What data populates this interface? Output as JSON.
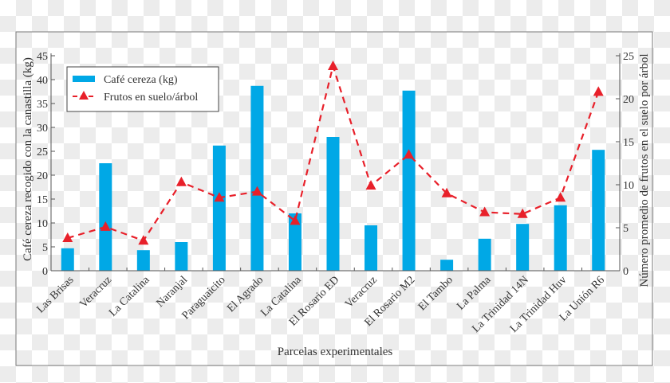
{
  "chart_data": {
    "type": "bar",
    "title": "",
    "xlabel": "Parcelas experimentales",
    "ylabel": "Café cereza recogido con la canastilla (kg)",
    "y2label": "Número promedio de frutos en el suelo por árbol",
    "ylim": [
      0,
      45
    ],
    "y2lim": [
      0,
      25
    ],
    "yticks": [
      0,
      5,
      10,
      15,
      20,
      25,
      30,
      35,
      40,
      45
    ],
    "y2ticks": [
      0,
      5,
      10,
      15,
      20,
      25
    ],
    "grid": false,
    "legend_position": "top-left",
    "categories": [
      "Las Brisas",
      "Veracruz",
      "La Catalina",
      "Naranjal",
      "Paraguaicito",
      "El Agrado",
      "La Catalina",
      "El Rosario ED",
      "Veracruz",
      "El Rosario M2",
      "El Tambo",
      "La Palma",
      "La Trinidad 14N",
      "La Trinidad Huv",
      "La Unión R6"
    ],
    "series": [
      {
        "name": "Café cereza (kg)",
        "type": "bar",
        "axis": "left",
        "color": "#00a8e6",
        "values": [
          4.7,
          22.5,
          4.3,
          6.0,
          26.2,
          38.7,
          12.0,
          28.0,
          9.5,
          37.7,
          2.3,
          6.7,
          9.8,
          13.7,
          25.3
        ]
      },
      {
        "name": "Frutos en suelo/árbol",
        "type": "line",
        "axis": "right",
        "color": "#e8202a",
        "style": "dashed",
        "marker": "triangle",
        "values": [
          3.8,
          5.1,
          3.5,
          10.3,
          8.5,
          9.2,
          5.8,
          23.8,
          9.9,
          13.5,
          9.0,
          6.8,
          6.6,
          8.5,
          20.8
        ]
      }
    ]
  }
}
